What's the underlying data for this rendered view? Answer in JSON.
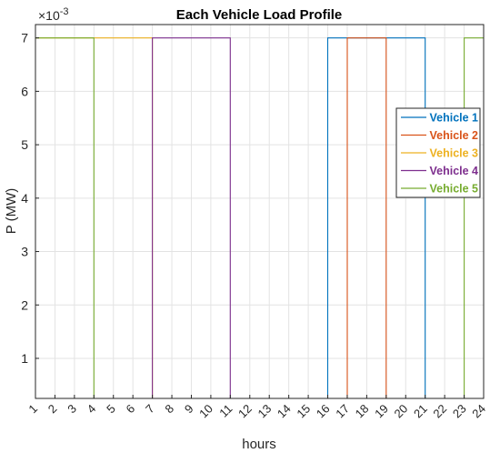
{
  "chart_data": {
    "type": "line",
    "title": "Each Vehicle Load Profile",
    "xlabel": "hours",
    "ylabel": "P (MW)",
    "y_exponent_label": "×10",
    "y_exponent_power": "-3",
    "xlim": [
      1,
      24
    ],
    "ylim": [
      0.25,
      7.25
    ],
    "x_ticks": [
      1,
      2,
      3,
      4,
      5,
      6,
      7,
      8,
      9,
      10,
      11,
      12,
      13,
      14,
      15,
      16,
      17,
      18,
      19,
      20,
      21,
      22,
      23,
      24
    ],
    "y_ticks": [
      1,
      2,
      3,
      4,
      5,
      6,
      7
    ],
    "grid": true,
    "legend_position": "right",
    "series": [
      {
        "name": "Vehicle 1",
        "color": "#0072BD",
        "x": [
          1,
          16,
          16,
          21,
          21,
          24
        ],
        "y": [
          0.25,
          0.25,
          7,
          7,
          0.25,
          0.25
        ]
      },
      {
        "name": "Vehicle 2",
        "color": "#D95319",
        "x": [
          1,
          17,
          17,
          19,
          19,
          24
        ],
        "y": [
          0.25,
          0.25,
          7,
          7,
          0.25,
          0.25
        ]
      },
      {
        "name": "Vehicle 3",
        "color": "#EDB120",
        "x": [
          1,
          7,
          7,
          24
        ],
        "y": [
          7,
          7,
          0.25,
          0.25
        ]
      },
      {
        "name": "Vehicle 4",
        "color": "#7E2F8E",
        "x": [
          1,
          7,
          7,
          11,
          11,
          24
        ],
        "y": [
          0.25,
          0.25,
          7,
          7,
          0.25,
          0.25
        ]
      },
      {
        "name": "Vehicle 5",
        "color": "#77AC30",
        "x": [
          1,
          4,
          4,
          23,
          23,
          24
        ],
        "y": [
          7,
          7,
          0.25,
          0.25,
          7,
          7
        ]
      }
    ]
  }
}
